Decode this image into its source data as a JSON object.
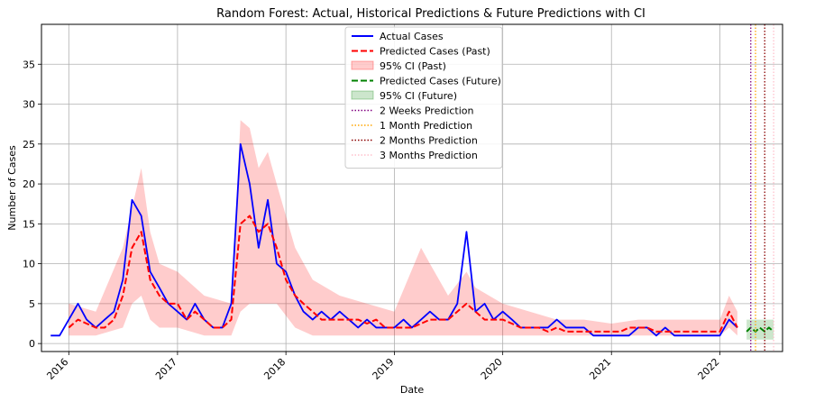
{
  "chart_data": {
    "type": "line",
    "title": "Random Forest: Actual, Historical Predictions & Future Predictions with CI",
    "xlabel": "Date",
    "ylabel": "Number of Cases",
    "xlim": [
      "2015-10-01",
      "2022-07-31"
    ],
    "ylim": [
      -1,
      40
    ],
    "x_ticks": [
      "2016",
      "2017",
      "2018",
      "2019",
      "2020",
      "2021",
      "2022"
    ],
    "y_ticks": [
      0,
      5,
      10,
      15,
      20,
      25,
      30,
      35
    ],
    "grid": true,
    "legend_position": "top-center",
    "series": [
      {
        "name": "Actual Cases",
        "style": "solid",
        "color": "#0000ff",
        "x": [
          "2015-11-01",
          "2015-12-01",
          "2016-01-01",
          "2016-02-01",
          "2016-03-01",
          "2016-04-01",
          "2016-05-01",
          "2016-06-01",
          "2016-07-01",
          "2016-08-01",
          "2016-09-01",
          "2016-10-01",
          "2016-11-01",
          "2016-12-01",
          "2017-01-01",
          "2017-02-01",
          "2017-03-01",
          "2017-04-01",
          "2017-05-01",
          "2017-06-01",
          "2017-07-01",
          "2017-08-01",
          "2017-09-01",
          "2017-10-01",
          "2017-11-01",
          "2017-12-01",
          "2018-01-01",
          "2018-02-01",
          "2018-03-01",
          "2018-04-01",
          "2018-05-01",
          "2018-06-01",
          "2018-07-01",
          "2018-08-01",
          "2018-09-01",
          "2018-10-01",
          "2018-11-01",
          "2018-12-01",
          "2019-01-01",
          "2019-02-01",
          "2019-03-01",
          "2019-04-01",
          "2019-05-01",
          "2019-06-01",
          "2019-07-01",
          "2019-08-01",
          "2019-09-01",
          "2019-10-01",
          "2019-11-01",
          "2019-12-01",
          "2020-01-01",
          "2020-02-01",
          "2020-03-01",
          "2020-04-01",
          "2020-05-01",
          "2020-06-01",
          "2020-07-01",
          "2020-08-01",
          "2020-09-01",
          "2020-10-01",
          "2020-11-01",
          "2020-12-01",
          "2021-01-01",
          "2021-02-01",
          "2021-03-01",
          "2021-04-01",
          "2021-05-01",
          "2021-06-01",
          "2021-07-01",
          "2021-08-01",
          "2021-09-01",
          "2021-10-01",
          "2021-11-01",
          "2021-12-01",
          "2022-01-01",
          "2022-02-01",
          "2022-03-01"
        ],
        "y": [
          1,
          1,
          3,
          5,
          3,
          2,
          3,
          4,
          8,
          18,
          16,
          9,
          7,
          5,
          4,
          3,
          5,
          3,
          2,
          2,
          5,
          25,
          20,
          12,
          18,
          10,
          9,
          6,
          4,
          3,
          4,
          3,
          4,
          3,
          2,
          3,
          2,
          2,
          2,
          3,
          2,
          3,
          4,
          3,
          3,
          5,
          14,
          4,
          5,
          3,
          4,
          3,
          2,
          2,
          2,
          2,
          3,
          2,
          2,
          2,
          1,
          1,
          1,
          1,
          1,
          2,
          2,
          1,
          2,
          1,
          1,
          1,
          1,
          1,
          1,
          3,
          2
        ]
      },
      {
        "name": "Predicted Cases (Past)",
        "style": "dashed",
        "color": "#ff0000",
        "x": [
          "2016-01-01",
          "2016-02-01",
          "2016-03-01",
          "2016-04-01",
          "2016-05-01",
          "2016-06-01",
          "2016-07-01",
          "2016-08-01",
          "2016-09-01",
          "2016-10-01",
          "2016-11-01",
          "2016-12-01",
          "2017-01-01",
          "2017-02-01",
          "2017-03-01",
          "2017-04-01",
          "2017-05-01",
          "2017-06-01",
          "2017-07-01",
          "2017-08-01",
          "2017-09-01",
          "2017-10-01",
          "2017-11-01",
          "2017-12-01",
          "2018-01-01",
          "2018-02-01",
          "2018-03-01",
          "2018-04-01",
          "2018-05-01",
          "2018-06-01",
          "2018-07-01",
          "2018-08-01",
          "2018-09-01",
          "2018-10-01",
          "2018-11-01",
          "2018-12-01",
          "2019-01-01",
          "2019-02-01",
          "2019-03-01",
          "2019-04-01",
          "2019-05-01",
          "2019-06-01",
          "2019-07-01",
          "2019-08-01",
          "2019-09-01",
          "2019-10-01",
          "2019-11-01",
          "2019-12-01",
          "2020-01-01",
          "2020-02-01",
          "2020-03-01",
          "2020-04-01",
          "2020-05-01",
          "2020-06-01",
          "2020-07-01",
          "2020-08-01",
          "2020-09-01",
          "2020-10-01",
          "2020-11-01",
          "2020-12-01",
          "2021-01-01",
          "2021-02-01",
          "2021-03-01",
          "2021-04-01",
          "2021-05-01",
          "2021-06-01",
          "2021-07-01",
          "2021-08-01",
          "2021-09-01",
          "2021-10-01",
          "2021-11-01",
          "2021-12-01",
          "2022-01-01",
          "2022-02-01",
          "2022-03-01"
        ],
        "y": [
          2,
          3,
          2.5,
          2,
          2,
          3,
          6,
          12,
          14,
          8,
          6,
          5,
          5,
          3,
          4,
          3,
          2,
          2,
          3,
          15,
          16,
          14,
          15,
          12,
          8,
          6,
          5,
          4,
          3,
          3,
          3,
          3,
          3,
          2.5,
          3,
          2,
          2,
          2,
          2,
          2.5,
          3,
          3,
          3,
          4,
          5,
          4,
          3,
          3,
          3,
          2.5,
          2,
          2,
          2,
          1.5,
          2,
          1.5,
          1.5,
          1.5,
          1.5,
          1.5,
          1.5,
          1.5,
          2,
          2,
          2,
          1.5,
          1.5,
          1.5,
          1.5,
          1.5,
          1.5,
          1.5,
          1.5,
          4,
          2
        ]
      },
      {
        "name": "Predicted Cases (Future)",
        "style": "dashed",
        "color": "#008000",
        "x": [
          "2022-04-01",
          "2022-04-15",
          "2022-05-01",
          "2022-05-15",
          "2022-06-01",
          "2022-06-15",
          "2022-07-01"
        ],
        "y": [
          1.5,
          2,
          1.5,
          2,
          1.5,
          2,
          1.5
        ]
      }
    ],
    "bands": [
      {
        "name": "95% CI (Past)",
        "color": "#ff0000",
        "opacity": 0.2,
        "x": [
          "2016-01-01",
          "2016-04-01",
          "2016-07-01",
          "2016-08-01",
          "2016-09-01",
          "2016-10-01",
          "2016-11-01",
          "2017-01-01",
          "2017-04-01",
          "2017-07-01",
          "2017-08-01",
          "2017-09-01",
          "2017-10-01",
          "2017-11-01",
          "2017-12-01",
          "2018-02-01",
          "2018-04-01",
          "2018-07-01",
          "2018-10-01",
          "2019-01-01",
          "2019-04-01",
          "2019-05-01",
          "2019-07-01",
          "2019-09-01",
          "2019-10-01",
          "2020-01-01",
          "2020-04-01",
          "2020-07-01",
          "2020-10-01",
          "2021-01-01",
          "2021-04-01",
          "2021-07-01",
          "2021-10-01",
          "2022-01-01",
          "2022-02-01",
          "2022-03-01"
        ],
        "upper": [
          5,
          4,
          12,
          17,
          22,
          14,
          10,
          9,
          6,
          5,
          28,
          27,
          22,
          24,
          20,
          12,
          8,
          6,
          5,
          4,
          12,
          10,
          6,
          9,
          7,
          5,
          4,
          3,
          3,
          2.5,
          3,
          3,
          3,
          3,
          6,
          4
        ],
        "lower": [
          1,
          1,
          2,
          5,
          6,
          3,
          2,
          2,
          1,
          1,
          4,
          5,
          5,
          5,
          5,
          2,
          1,
          1,
          1,
          1,
          1,
          1,
          1,
          1,
          1,
          1,
          1,
          1,
          1,
          1,
          1,
          1,
          1,
          1,
          2,
          1
        ]
      },
      {
        "name": "95% CI (Future)",
        "color": "#008000",
        "opacity": 0.2,
        "x": [
          "2022-04-01",
          "2022-05-15",
          "2022-07-01"
        ],
        "upper": [
          3,
          3,
          3
        ],
        "lower": [
          0.5,
          0.5,
          0.5
        ]
      }
    ],
    "vlines": [
      {
        "name": "2 Weeks Prediction",
        "x": "2022-04-15",
        "color": "#800080"
      },
      {
        "name": "1 Month Prediction",
        "x": "2022-05-01",
        "color": "#ffa500"
      },
      {
        "name": "2 Months Prediction",
        "x": "2022-06-01",
        "color": "#8b0000"
      },
      {
        "name": "3 Months Prediction",
        "x": "2022-07-01",
        "color": "#ffc0cb"
      }
    ]
  }
}
